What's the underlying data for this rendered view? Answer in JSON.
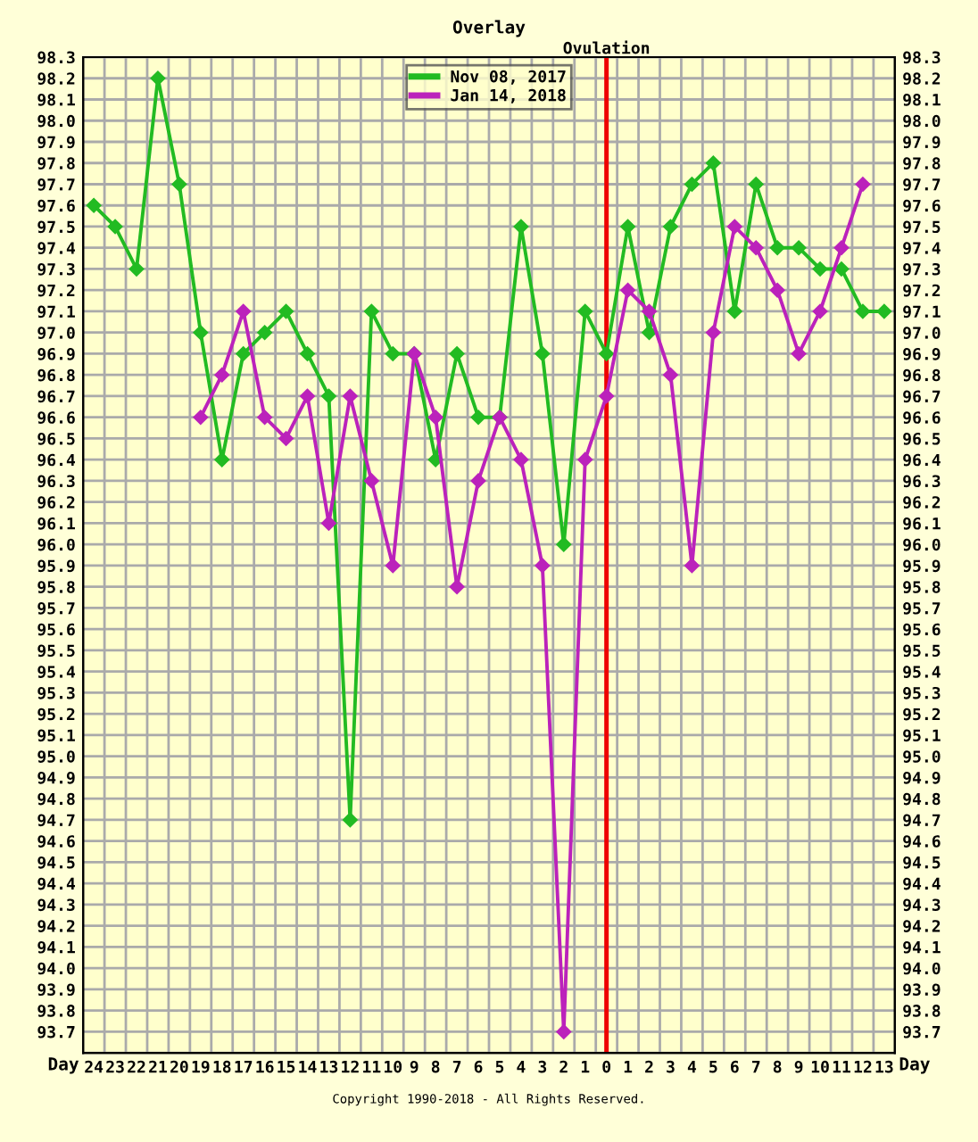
{
  "chart_data": {
    "type": "line",
    "title": "Overlay",
    "xlabel": "Day",
    "categories": [
      "24",
      "23",
      "22",
      "21",
      "20",
      "19",
      "18",
      "17",
      "16",
      "15",
      "14",
      "13",
      "12",
      "11",
      "10",
      "9",
      "8",
      "7",
      "6",
      "5",
      "4",
      "3",
      "2",
      "1",
      "0",
      "1",
      "2",
      "3",
      "4",
      "5",
      "6",
      "7",
      "8",
      "9",
      "10",
      "11",
      "12",
      "13"
    ],
    "series": [
      {
        "name": "Nov 08, 2017",
        "color": "#22bb22",
        "values": [
          97.6,
          97.5,
          97.3,
          98.2,
          97.7,
          97.0,
          96.4,
          96.9,
          97.0,
          97.1,
          96.9,
          96.7,
          94.7,
          97.1,
          96.9,
          96.9,
          96.4,
          96.9,
          96.6,
          96.6,
          97.5,
          96.9,
          96.0,
          97.1,
          96.9,
          97.5,
          97.0,
          97.5,
          97.7,
          97.8,
          97.1,
          97.7,
          97.4,
          97.4,
          97.3,
          97.3,
          97.1,
          97.1
        ]
      },
      {
        "name": "Jan 14, 2018",
        "color": "#bb22bb",
        "values": [
          null,
          null,
          null,
          null,
          null,
          96.6,
          96.8,
          97.1,
          96.6,
          96.5,
          96.7,
          96.1,
          96.7,
          96.3,
          95.9,
          96.9,
          96.6,
          95.8,
          96.3,
          96.6,
          96.4,
          95.9,
          93.7,
          96.4,
          96.7,
          97.2,
          97.1,
          96.8,
          95.9,
          97.0,
          97.5,
          97.4,
          97.2,
          96.9,
          97.1,
          97.4,
          97.7,
          null
        ]
      }
    ],
    "ylim": [
      93.6,
      98.3
    ],
    "yticks": [
      93.7,
      93.8,
      93.9,
      {
        "value": 94,
        "label": "94.0"
      },
      94.1,
      94.2,
      94.3,
      94.4,
      94.5,
      94.6,
      94.7,
      94.8,
      94.9,
      {
        "value": 95,
        "label": "95.0"
      },
      95.1,
      95.2,
      95.3,
      95.4,
      95.5,
      95.6,
      95.7,
      95.8,
      95.9,
      {
        "value": 96,
        "label": "96.0"
      },
      96.1,
      96.2,
      96.3,
      96.4,
      96.5,
      96.6,
      96.7,
      96.8,
      96.9,
      {
        "value": 97,
        "label": "97.0"
      },
      97.1,
      97.2,
      97.3,
      97.4,
      97.5,
      97.6,
      97.7,
      97.8,
      97.9,
      {
        "value": 98,
        "label": "98.0"
      },
      98.1,
      98.2,
      98.3
    ],
    "y2lim": [
      93.6,
      98.3
    ],
    "y2ticks": [
      93.7,
      93.8,
      93.9,
      {
        "value": 94,
        "label": "94.0"
      },
      94.1,
      94.2,
      94.3,
      94.4,
      94.5,
      94.6,
      94.7,
      94.8,
      94.9,
      {
        "value": 95,
        "label": "95.0"
      },
      95.1,
      95.2,
      95.3,
      95.4,
      95.5,
      95.6,
      95.7,
      95.8,
      95.9,
      {
        "value": 96,
        "label": "96.0"
      },
      96.1,
      96.2,
      96.3,
      96.4,
      96.5,
      96.6,
      96.7,
      96.8,
      96.9,
      {
        "value": 97,
        "label": "97.0"
      },
      97.1,
      97.2,
      97.3,
      97.4,
      97.5,
      97.6,
      97.7,
      97.8,
      97.9,
      {
        "value": 98,
        "label": "98.0"
      },
      98.1,
      98.2,
      98.3
    ],
    "ref_lines": [
      {
        "axis": "x",
        "value": "0",
        "label": "Ovulation",
        "color": "#ee0000"
      }
    ],
    "annotations": [
      "Copyright 1990-2018 - All Rights Reserved."
    ],
    "legend": "top",
    "grid": true,
    "marker": "diamond",
    "line_style": "solid"
  }
}
